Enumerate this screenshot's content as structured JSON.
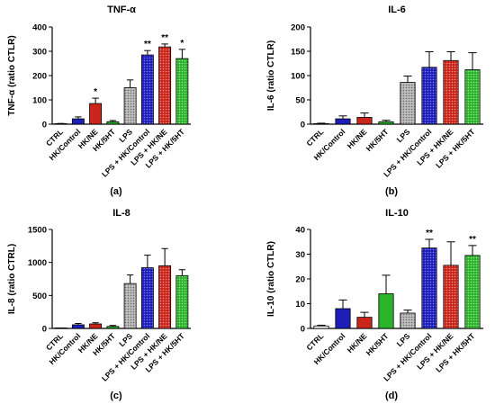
{
  "chart_data": [
    {
      "type": "bar",
      "title": "TNF-α",
      "ylabel": "TNF-α (ratio CTLR)",
      "xlabel": "",
      "panel_label": "(a)",
      "ylim": [
        0,
        400
      ],
      "yticks": [
        0,
        100,
        200,
        300,
        400
      ],
      "categories": [
        "CTRL",
        "HK/Control",
        "HK/NE",
        "HK/5HT",
        "LPS",
        "LPS + HK/Control",
        "LPS + HK/NE",
        "LPS + HK/5HT"
      ],
      "values": [
        1,
        22,
        85,
        10,
        150,
        285,
        318,
        270
      ],
      "errors": [
        2,
        8,
        22,
        5,
        32,
        18,
        12,
        38
      ],
      "significance": [
        "",
        "",
        "*",
        "",
        "",
        "**",
        "**",
        "*"
      ]
    },
    {
      "type": "bar",
      "title": "IL-6",
      "ylabel": "IL-6 (ratio CTLR)",
      "xlabel": "",
      "panel_label": "(b)",
      "ylim": [
        0,
        200
      ],
      "yticks": [
        0,
        50,
        100,
        150,
        200
      ],
      "categories": [
        "CTRL",
        "HK/Control",
        "HK/NE",
        "HK/5HT",
        "LPS",
        "LPS + HK/Control",
        "LPS + HK/NE",
        "LPS + HK/5HT"
      ],
      "values": [
        1,
        11,
        14,
        5,
        86,
        117,
        131,
        112
      ],
      "errors": [
        1,
        6,
        9,
        3,
        13,
        32,
        18,
        35
      ],
      "significance": [
        "",
        "",
        "",
        "",
        "",
        "",
        "",
        ""
      ]
    },
    {
      "type": "bar",
      "title": "IL-8",
      "ylabel": "IL-8 (ratio CTRL)",
      "xlabel": "",
      "panel_label": "(c)",
      "ylim": [
        0,
        1500
      ],
      "yticks": [
        0,
        500,
        1000,
        1500
      ],
      "categories": [
        "CTRL",
        "HK/Control",
        "HK/NE",
        "HK/5HT",
        "LPS",
        "LPS + HK/Control",
        "LPS + HK/NE",
        "LPS + HK/5HT"
      ],
      "values": [
        1,
        55,
        68,
        30,
        680,
        920,
        950,
        800
      ],
      "errors": [
        2,
        20,
        18,
        15,
        130,
        190,
        260,
        90
      ],
      "significance": [
        "",
        "",
        "",
        "",
        "",
        "",
        "",
        ""
      ]
    },
    {
      "type": "bar",
      "title": "IL-10",
      "ylabel": "IL-10 (ratio CTLR)",
      "xlabel": "",
      "panel_label": "(d)",
      "ylim": [
        0,
        40
      ],
      "yticks": [
        0,
        10,
        20,
        30,
        40
      ],
      "categories": [
        "CTRL",
        "HK/Control",
        "HK/NE",
        "HK/5HT",
        "LPS",
        "LPS + HK/Control",
        "LPS + HK/NE",
        "LPS + HK/5HT"
      ],
      "values": [
        1,
        8,
        4.5,
        14,
        6.2,
        32.5,
        25.5,
        29.5
      ],
      "errors": [
        0.3,
        3.5,
        2,
        7.5,
        1.2,
        3.5,
        9.5,
        4
      ],
      "significance": [
        "",
        "",
        "",
        "",
        "",
        "**",
        "",
        "**"
      ]
    }
  ],
  "bar_styles": [
    {
      "fill": "#ffffff",
      "pattern": "none"
    },
    {
      "fill": "#1d1db8",
      "pattern": "none"
    },
    {
      "fill": "#c9251b",
      "pattern": "none"
    },
    {
      "fill": "#2bb32b",
      "pattern": "none"
    },
    {
      "fill": "#b4b4b4",
      "pattern": "dots"
    },
    {
      "fill": "#1d1db8",
      "pattern": "dots"
    },
    {
      "fill": "#c9251b",
      "pattern": "dots"
    },
    {
      "fill": "#2bb32b",
      "pattern": "dots"
    }
  ]
}
